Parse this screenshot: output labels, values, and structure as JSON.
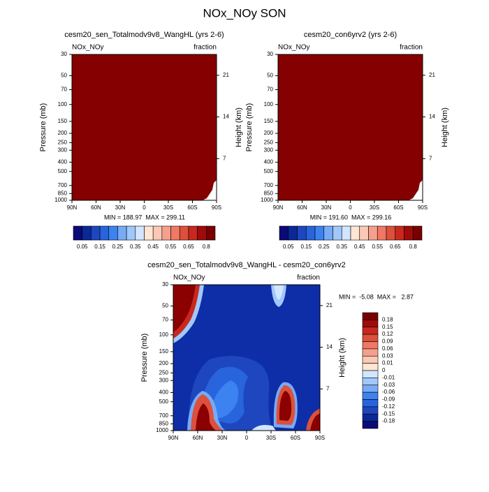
{
  "title": "NOx_NOy SON",
  "chart_data": [
    {
      "type": "contour",
      "title": "cesm20_sen_Totalmodv9v8_WangHL (yrs 2-6)",
      "left_label": "NOx_NOy",
      "right_label": "fraction",
      "ylabel": "Pressure (mb)",
      "y2label": "Height (km)",
      "stats": "MIN = 188.97  MAX = 299.11",
      "xlim": [
        90,
        -90
      ],
      "xticks": [
        {
          "value": 90,
          "label": "90N"
        },
        {
          "value": 60,
          "label": "60N"
        },
        {
          "value": 30,
          "label": "30N"
        },
        0,
        {
          "value": -30,
          "label": "30S"
        },
        {
          "value": -60,
          "label": "60S"
        },
        {
          "value": -90,
          "label": "90S"
        }
      ],
      "ylim": [
        1000,
        30
      ],
      "log_scale": true,
      "yticks": [
        30,
        50,
        70,
        100,
        150,
        200,
        250,
        300,
        400,
        500,
        700,
        850,
        1000
      ],
      "y2lim": [
        0,
        24.5
      ],
      "y2ticks": [
        7,
        14,
        21
      ],
      "colorbar": {
        "orientation": "horizontal",
        "labels": [
          0.05,
          0.15,
          0.25,
          0.35,
          0.45,
          0.55,
          0.65,
          0.8
        ],
        "colors": [
          "#0a0a78",
          "#0a2896",
          "#1e46be",
          "#2864dc",
          "#3c82f0",
          "#78aaf5",
          "#a0c8fa",
          "#d2e6ff",
          "#ffe6d2",
          "#fac8b4",
          "#f5a08c",
          "#f07864",
          "#dc503c",
          "#c8281e",
          "#a00a0a",
          "#780000"
        ]
      }
    },
    {
      "type": "contour",
      "title": "cesm20_con6yrv2 (yrs 2-6)",
      "left_label": "NOx_NOy",
      "right_label": "fraction",
      "ylabel": "Pressure (mb)",
      "y2label": "Height (km)",
      "stats": "MIN = 191.60  MAX = 299.16",
      "xlim": [
        90,
        -90
      ],
      "xticks": [
        {
          "value": 90,
          "label": "90N"
        },
        {
          "value": 60,
          "label": "60N"
        },
        {
          "value": 30,
          "label": "30N"
        },
        0,
        {
          "value": -30,
          "label": "30S"
        },
        {
          "value": -60,
          "label": "60S"
        },
        {
          "value": -90,
          "label": "90S"
        }
      ],
      "ylim": [
        1000,
        30
      ],
      "log_scale": true,
      "yticks": [
        30,
        50,
        70,
        100,
        150,
        200,
        250,
        300,
        400,
        500,
        700,
        850,
        1000
      ],
      "y2lim": [
        0,
        24.5
      ],
      "y2ticks": [
        7,
        14,
        21
      ],
      "colorbar": {
        "orientation": "horizontal",
        "labels": [
          0.05,
          0.15,
          0.25,
          0.35,
          0.45,
          0.55,
          0.65,
          0.8
        ],
        "colors": [
          "#0a0a78",
          "#0a2896",
          "#1e46be",
          "#2864dc",
          "#3c82f0",
          "#78aaf5",
          "#a0c8fa",
          "#d2e6ff",
          "#ffe6d2",
          "#fac8b4",
          "#f5a08c",
          "#f07864",
          "#dc503c",
          "#c8281e",
          "#a00a0a",
          "#780000"
        ]
      }
    },
    {
      "type": "contour",
      "title": "cesm20_sen_Totalmodv9v8_WangHL - cesm20_con6yrv2",
      "left_label": "NOx_NOy",
      "right_label": "fraction",
      "ylabel": "Pressure (mb)",
      "y2label": "Height (km)",
      "stats": "MIN =  -5.08  MAX =   2.87",
      "xlim": [
        90,
        -90
      ],
      "xticks": [
        {
          "value": 90,
          "label": "90N"
        },
        {
          "value": 60,
          "label": "60N"
        },
        {
          "value": 30,
          "label": "30N"
        },
        0,
        {
          "value": -30,
          "label": "30S"
        },
        {
          "value": -60,
          "label": "60S"
        },
        {
          "value": -90,
          "label": "90S"
        }
      ],
      "ylim": [
        1000,
        30
      ],
      "log_scale": true,
      "yticks": [
        30,
        50,
        70,
        100,
        150,
        200,
        250,
        300,
        400,
        500,
        700,
        850,
        1000
      ],
      "y2lim": [
        0,
        24.5
      ],
      "y2ticks": [
        7,
        14,
        21
      ],
      "colorbar": {
        "orientation": "vertical",
        "labels": [
          0.18,
          0.15,
          0.12,
          0.09,
          0.06,
          0.03,
          0.01,
          0,
          -0.01,
          -0.03,
          -0.06,
          -0.09,
          -0.12,
          -0.15,
          -0.18
        ],
        "colors": [
          "#780000",
          "#a00a0a",
          "#c8281e",
          "#dc503c",
          "#f07864",
          "#f5a08c",
          "#fac8b4",
          "#ffe6d2",
          "#d2e6ff",
          "#a0c8fa",
          "#78aaf5",
          "#3c82f0",
          "#2864dc",
          "#1e46be",
          "#0a2896",
          "#0a0a78"
        ]
      }
    }
  ]
}
